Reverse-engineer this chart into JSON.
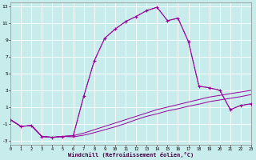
{
  "xlabel": "Windchill (Refroidissement éolien,°C)",
  "background_color": "#c8ecec",
  "grid_color": "#b0d8d8",
  "line_color": "#990099",
  "xlim": [
    0,
    23
  ],
  "ylim": [
    -3.5,
    13.5
  ],
  "xticks": [
    0,
    1,
    2,
    3,
    4,
    5,
    6,
    7,
    8,
    9,
    10,
    11,
    12,
    13,
    14,
    15,
    16,
    17,
    18,
    19,
    20,
    21,
    22,
    23
  ],
  "yticks": [
    -3,
    -1,
    1,
    3,
    5,
    7,
    9,
    11,
    13
  ],
  "main_x": [
    0,
    1,
    2,
    3,
    4,
    5,
    6,
    7,
    8,
    9,
    10,
    11,
    12,
    13,
    14,
    15,
    16,
    17,
    18,
    19,
    20,
    21,
    22,
    23
  ],
  "main_y": [
    -0.5,
    -1.3,
    -1.2,
    -2.5,
    -2.6,
    -2.5,
    -2.4,
    2.3,
    6.5,
    9.2,
    10.3,
    11.2,
    11.8,
    12.5,
    12.9,
    11.3,
    11.6,
    8.8,
    3.5,
    3.3,
    3.0,
    0.7,
    1.2,
    1.4
  ],
  "dot_x": [
    0,
    1,
    2,
    3,
    4,
    5,
    6,
    7,
    8,
    9,
    10,
    11,
    12,
    13,
    14,
    15,
    16,
    17,
    18,
    19,
    20,
    21,
    22,
    23
  ],
  "dot_y": [
    -0.5,
    -1.3,
    -1.2,
    -2.5,
    -2.6,
    -2.5,
    -2.4,
    2.3,
    6.5,
    9.2,
    10.3,
    11.2,
    11.8,
    12.5,
    12.9,
    11.3,
    11.6,
    8.8,
    3.5,
    3.3,
    3.0,
    0.7,
    1.2,
    1.4
  ],
  "flat1_x": [
    0,
    1,
    2,
    3,
    4,
    5,
    6,
    7,
    8,
    9,
    10,
    11,
    12,
    13,
    14,
    15,
    16,
    17,
    18,
    19,
    20,
    21,
    22,
    23
  ],
  "flat1_y": [
    -0.5,
    -1.3,
    -1.2,
    -2.5,
    -2.6,
    -2.5,
    -2.4,
    -2.1,
    -1.7,
    -1.3,
    -0.9,
    -0.5,
    -0.1,
    0.3,
    0.7,
    1.0,
    1.3,
    1.6,
    1.9,
    2.2,
    2.4,
    2.6,
    2.8,
    3.0
  ],
  "flat2_x": [
    0,
    1,
    2,
    3,
    4,
    5,
    6,
    7,
    8,
    9,
    10,
    11,
    12,
    13,
    14,
    15,
    16,
    17,
    18,
    19,
    20,
    21,
    22,
    23
  ],
  "flat2_y": [
    -0.5,
    -1.3,
    -1.2,
    -2.5,
    -2.6,
    -2.5,
    -2.55,
    -2.35,
    -2.05,
    -1.7,
    -1.35,
    -0.95,
    -0.5,
    -0.1,
    0.2,
    0.55,
    0.8,
    1.1,
    1.35,
    1.65,
    1.85,
    2.05,
    2.25,
    2.5
  ]
}
